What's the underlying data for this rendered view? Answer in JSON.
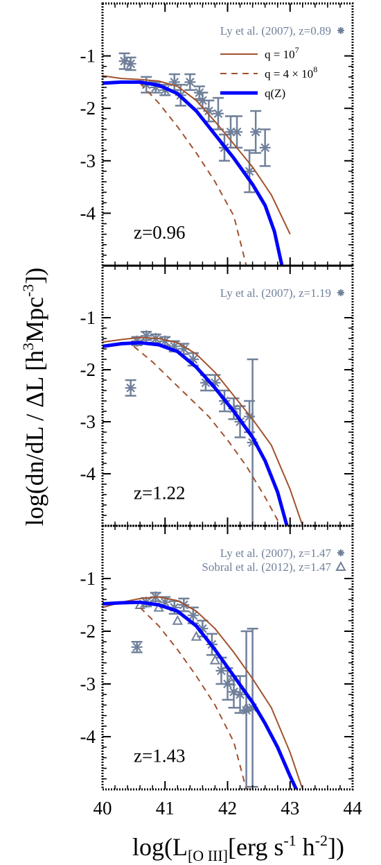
{
  "chart_data": {
    "type": "line",
    "xlabel_parts": [
      "log(L",
      "[O III]",
      "[erg s",
      "-1",
      " h",
      "-2",
      "])"
    ],
    "ylabel_parts": [
      "log(dn/dL / ΔL [h",
      "3",
      "Mpc",
      "-3",
      "])"
    ],
    "xlim": [
      40,
      44
    ],
    "ylim": [
      -5,
      0
    ],
    "x_ticks": [
      "40",
      "41",
      "42",
      "43",
      "44"
    ],
    "y_ticks": [
      "-1",
      "-2",
      "-3",
      "-4"
    ],
    "colors": {
      "model": "#a0522d",
      "qz": "#0000ff",
      "obs": "#70809a"
    },
    "legend": {
      "line1": {
        "prefix": "q = 10",
        "sup": "7"
      },
      "line2": {
        "prefix": "q = 4 × 10",
        "sup": "8"
      },
      "line3": {
        "label": "q(Z)"
      }
    },
    "panels": [
      {
        "z_label": "z=0.96",
        "obs_labels": [
          "Ly et al. (2007), z=0.89"
        ],
        "series": [
          {
            "name": "q = 10^7",
            "style": "solid",
            "x": [
              40.0,
              40.3,
              40.6,
              40.9,
              41.2,
              41.5,
              41.8,
              42.1,
              42.4,
              42.7,
              43.0
            ],
            "y": [
              -1.38,
              -1.43,
              -1.45,
              -1.48,
              -1.58,
              -1.85,
              -2.25,
              -2.68,
              -3.12,
              -3.65,
              -4.4
            ]
          },
          {
            "name": "q = 4 × 10^8",
            "style": "dashed",
            "x": [
              40.6,
              40.9,
              41.2,
              41.5,
              41.8,
              42.1,
              42.3
            ],
            "y": [
              -1.52,
              -1.9,
              -2.35,
              -2.85,
              -3.4,
              -4.05,
              -5.0
            ]
          },
          {
            "name": "q(Z)",
            "style": "thick",
            "x": [
              40.0,
              40.3,
              40.6,
              40.9,
              41.2,
              41.5,
              41.8,
              42.1,
              42.4,
              42.6,
              42.75,
              42.87
            ],
            "y": [
              -1.52,
              -1.5,
              -1.5,
              -1.56,
              -1.72,
              -2.05,
              -2.5,
              -2.95,
              -3.45,
              -3.85,
              -4.35,
              -5.0
            ]
          }
        ],
        "obs": [
          {
            "x": 40.35,
            "y": -1.1,
            "err": 0.15
          },
          {
            "x": 40.45,
            "y": -1.15,
            "err": 0.12
          },
          {
            "x": 40.7,
            "y": -1.55,
            "err": 0.15
          },
          {
            "x": 40.85,
            "y": -1.6,
            "err": 0.1
          },
          {
            "x": 41.0,
            "y": -1.65,
            "err": 0.1
          },
          {
            "x": 41.15,
            "y": -1.5,
            "err": 0.15
          },
          {
            "x": 41.25,
            "y": -1.75,
            "err": 0.2
          },
          {
            "x": 41.4,
            "y": -1.5,
            "err": 0.15
          },
          {
            "x": 41.55,
            "y": -1.7,
            "err": 0.12
          },
          {
            "x": 41.6,
            "y": -1.85,
            "err": 0.15
          },
          {
            "x": 41.7,
            "y": -2.05,
            "err": 0.2
          },
          {
            "x": 41.85,
            "y": -2.1,
            "err": 0.3
          },
          {
            "x": 41.95,
            "y": -2.75,
            "err": 0.25
          },
          {
            "x": 42.05,
            "y": -2.45,
            "err": 0.3
          },
          {
            "x": 42.15,
            "y": -2.45,
            "err": 0.3
          },
          {
            "x": 42.35,
            "y": -3.2,
            "err": 0.4
          },
          {
            "x": 42.45,
            "y": -2.45,
            "err": 0.4
          },
          {
            "x": 42.6,
            "y": -2.75,
            "err": 0.35
          }
        ]
      },
      {
        "z_label": "z=1.22",
        "obs_labels": [
          "Ly et al. (2007), z=1.19"
        ],
        "series": [
          {
            "name": "q = 10^7",
            "style": "solid",
            "x": [
              40.0,
              40.3,
              40.6,
              40.9,
              41.2,
              41.5,
              41.8,
              42.1,
              42.4,
              42.7,
              43.0,
              43.2
            ],
            "y": [
              -1.47,
              -1.42,
              -1.38,
              -1.4,
              -1.48,
              -1.7,
              -2.05,
              -2.5,
              -2.95,
              -3.45,
              -4.3,
              -5.0
            ]
          },
          {
            "name": "q = 4 × 10^8",
            "style": "dashed",
            "x": [
              40.5,
              40.8,
              41.1,
              41.4,
              41.7,
              42.0,
              42.3,
              42.6,
              42.85
            ],
            "y": [
              -1.55,
              -1.85,
              -2.2,
              -2.55,
              -2.9,
              -3.35,
              -3.85,
              -4.45,
              -5.0
            ]
          },
          {
            "name": "q(Z)",
            "style": "thick",
            "x": [
              40.0,
              40.3,
              40.6,
              40.9,
              41.2,
              41.5,
              41.8,
              42.1,
              42.4,
              42.6,
              42.8,
              42.95
            ],
            "y": [
              -1.55,
              -1.5,
              -1.48,
              -1.52,
              -1.65,
              -1.95,
              -2.35,
              -2.8,
              -3.3,
              -3.75,
              -4.35,
              -5.0
            ]
          }
        ],
        "obs": [
          {
            "x": 40.45,
            "y": -2.35,
            "err": 0.15
          },
          {
            "x": 40.55,
            "y": -1.45,
            "err": 0.08
          },
          {
            "x": 40.7,
            "y": -1.35,
            "err": 0.08
          },
          {
            "x": 40.85,
            "y": -1.4,
            "err": 0.08
          },
          {
            "x": 41.0,
            "y": -1.45,
            "err": 0.08
          },
          {
            "x": 41.15,
            "y": -1.55,
            "err": 0.1
          },
          {
            "x": 41.3,
            "y": -1.6,
            "err": 0.1
          },
          {
            "x": 41.45,
            "y": -1.8,
            "err": 0.12
          },
          {
            "x": 41.65,
            "y": -2.25,
            "err": 0.15
          },
          {
            "x": 41.8,
            "y": -2.25,
            "err": 0.15
          },
          {
            "x": 41.95,
            "y": -2.6,
            "err": 0.2
          },
          {
            "x": 42.1,
            "y": -2.75,
            "err": 0.2
          },
          {
            "x": 42.2,
            "y": -3.0,
            "err": 0.3
          },
          {
            "x": 42.35,
            "y": -2.9,
            "err": 0.3
          },
          {
            "x": 42.4,
            "y": -3.4,
            "err": 1.6
          }
        ]
      },
      {
        "z_label": "z=1.43",
        "obs_labels": [
          "Ly et al. (2007), z=1.47",
          "Sobral et al. (2012), z=1.47"
        ],
        "series": [
          {
            "name": "q = 10^7",
            "style": "solid",
            "x": [
              40.0,
              40.3,
              40.6,
              40.9,
              41.2,
              41.5,
              41.8,
              42.1,
              42.4,
              42.7,
              43.0,
              43.2
            ],
            "y": [
              -1.55,
              -1.45,
              -1.38,
              -1.35,
              -1.42,
              -1.62,
              -1.95,
              -2.4,
              -2.9,
              -3.45,
              -4.3,
              -5.0
            ]
          },
          {
            "name": "q = 4 × 10^8",
            "style": "dashed",
            "x": [
              40.6,
              40.9,
              41.2,
              41.5,
              41.8,
              42.1,
              42.3
            ],
            "y": [
              -1.55,
              -1.9,
              -2.35,
              -2.85,
              -3.4,
              -4.1,
              -5.0
            ]
          },
          {
            "name": "q(Z)",
            "style": "thick",
            "x": [
              40.0,
              40.3,
              40.6,
              40.9,
              41.2,
              41.5,
              41.8,
              42.1,
              42.4,
              42.6,
              42.8,
              43.0,
              43.1
            ],
            "y": [
              -1.48,
              -1.46,
              -1.45,
              -1.5,
              -1.62,
              -1.9,
              -2.35,
              -2.85,
              -3.35,
              -3.75,
              -4.2,
              -4.75,
              -5.0
            ]
          }
        ],
        "obs": [
          {
            "x": 40.55,
            "y": -2.3,
            "err": 0.1
          },
          {
            "x": 40.7,
            "y": -1.45,
            "err": 0.08
          },
          {
            "x": 40.85,
            "y": -1.35,
            "err": 0.08
          },
          {
            "x": 41.0,
            "y": -1.45,
            "err": 0.1
          },
          {
            "x": 41.15,
            "y": -1.55,
            "err": 0.12
          },
          {
            "x": 41.3,
            "y": -1.5,
            "err": 0.12
          },
          {
            "x": 41.45,
            "y": -1.7,
            "err": 0.15
          },
          {
            "x": 41.6,
            "y": -1.95,
            "err": 0.15
          },
          {
            "x": 41.75,
            "y": -2.25,
            "err": 0.2
          },
          {
            "x": 41.9,
            "y": -2.75,
            "err": 0.25
          },
          {
            "x": 42.0,
            "y": -3.0,
            "err": 0.3
          },
          {
            "x": 42.1,
            "y": -3.15,
            "err": 0.3
          },
          {
            "x": 42.2,
            "y": -3.2,
            "err": 0.35
          },
          {
            "x": 42.3,
            "y": -3.5,
            "err": 1.5
          },
          {
            "x": 42.4,
            "y": -3.45,
            "err": 1.5
          }
        ],
        "obs_tri": [
          {
            "x": 40.6,
            "y": -1.5
          },
          {
            "x": 40.9,
            "y": -1.55
          },
          {
            "x": 41.2,
            "y": -1.8
          },
          {
            "x": 41.5,
            "y": -2.1
          },
          {
            "x": 41.8,
            "y": -2.55
          },
          {
            "x": 42.05,
            "y": -2.95
          },
          {
            "x": 42.3,
            "y": -3.45
          }
        ]
      }
    ]
  }
}
